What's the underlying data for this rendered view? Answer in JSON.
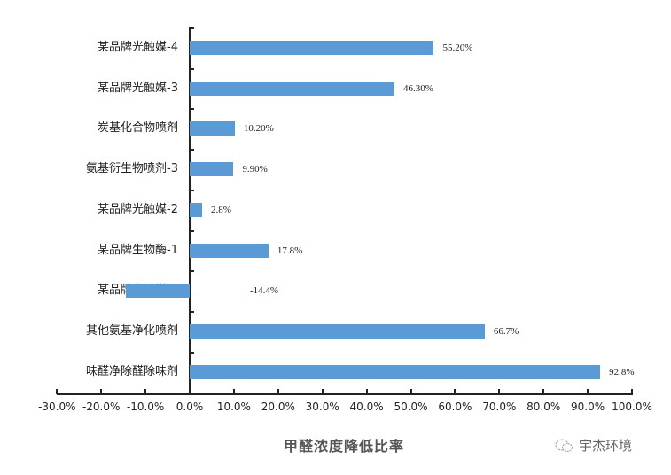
{
  "chart_data": {
    "type": "bar",
    "orientation": "horizontal",
    "title": "",
    "xlabel": "甲醛浓度降低比率",
    "ylabel": "",
    "xlim": [
      -30,
      100
    ],
    "x_ticks": [
      "-30.0%",
      "-20.0%",
      "-10.0%",
      "0.0%",
      "10.0%",
      "20.0%",
      "30.0%",
      "40.0%",
      "50.0%",
      "60.0%",
      "70.0%",
      "80.0%",
      "90.0%",
      "100.0%"
    ],
    "grid": false,
    "legend": null,
    "bar_color": "#5b9bd5",
    "categories": [
      "某品牌光触媒-4",
      "某品牌光触媒-3",
      "炭基化合物喷剂",
      "氨基衍生物喷剂-3",
      "某品牌光触媒-2",
      "某品牌生物酶-1",
      "某品牌光触媒-1",
      "其他氨基净化喷剂",
      "味醛净除醛除味剂"
    ],
    "values": [
      55.2,
      46.3,
      10.2,
      9.9,
      2.8,
      17.8,
      -14.4,
      66.7,
      92.8
    ],
    "value_labels": [
      "55.20%",
      "46.30%",
      "10.20%",
      "9.90%",
      "2.8%",
      "17.8%",
      "-14.4%",
      "66.7%",
      "92.8%"
    ]
  },
  "watermark": {
    "icon": "wechat-icon",
    "text": "宇杰环境"
  }
}
